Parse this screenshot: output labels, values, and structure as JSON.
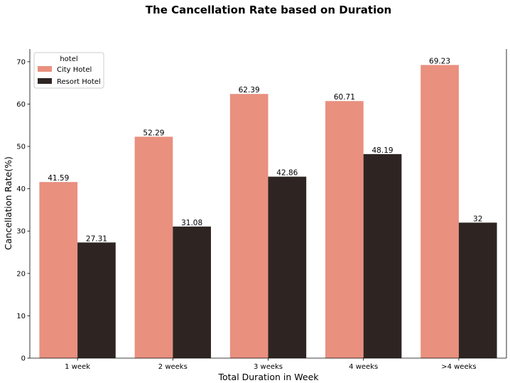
{
  "chart_data": {
    "type": "bar",
    "title": "The Cancellation Rate based on Duration",
    "xlabel": "Total Duration in Week",
    "ylabel": "Cancellation Rate(%)",
    "categories": [
      "1 week",
      "2 weeks",
      "3 weeks",
      "4 weeks",
      ">4 weeks"
    ],
    "series": [
      {
        "name": "City Hotel",
        "values": [
          41.59,
          52.29,
          62.39,
          60.71,
          69.23
        ],
        "color": "#e9907f"
      },
      {
        "name": "Resort Hotel",
        "values": [
          27.31,
          31.08,
          42.86,
          48.19,
          32
        ],
        "color": "#2e2523"
      }
    ],
    "ylim": [
      0,
      73
    ],
    "yticks": [
      0,
      10,
      20,
      30,
      40,
      50,
      60,
      70
    ],
    "legend": {
      "title": "hotel",
      "position": "top-left"
    },
    "grid": false
  }
}
